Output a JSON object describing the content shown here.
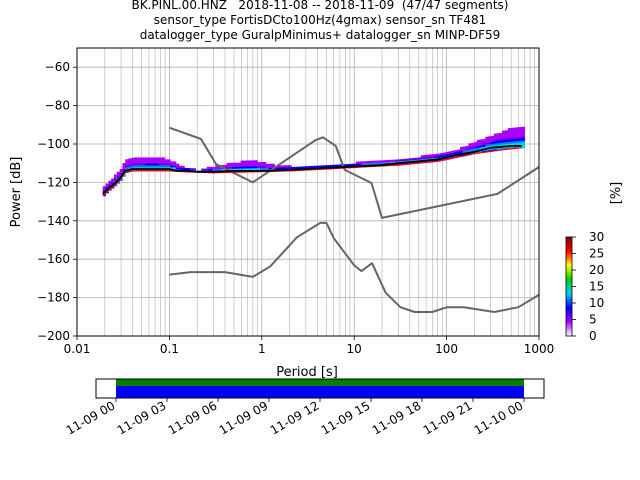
{
  "title_lines": [
    "BK.PINL.00.HNZ   2018-11-08 -- 2018-11-09  (47/47 segments)",
    "sensor_type FortisDCto100Hz(4gmax) sensor_sn TF481",
    "datalogger_type GuralpMinimus+ datalogger_sn MINP-DF59"
  ],
  "chart_data": {
    "type": "line",
    "title": "BK.PINL.00.HNZ   2018-11-08 -- 2018-11-09  (47/47 segments)",
    "xlabel": "Period [s]",
    "ylabel": "Power [dB]",
    "xscale": "log",
    "xlim": [
      0.01,
      1000
    ],
    "ylim": [
      -200,
      -50
    ],
    "x_ticks": [
      0.01,
      0.1,
      1,
      10,
      100,
      1000
    ],
    "x_tick_labels": [
      "0.01",
      "0.1",
      "1",
      "10",
      "100",
      "1000"
    ],
    "y_ticks": [
      -200,
      -180,
      -160,
      -140,
      -120,
      -100,
      -80,
      -60
    ],
    "y_tick_labels": [
      "−200",
      "−180",
      "−160",
      "−140",
      "−120",
      "−100",
      "−80",
      "−60"
    ],
    "grid": true,
    "series": [
      {
        "role": "noise_model_high",
        "color": "#666666",
        "x": [
          0.1,
          0.22,
          0.32,
          0.8,
          3.8,
          4.6,
          6.3,
          7.9,
          15.4,
          20,
          354.8,
          1000
        ],
        "y": [
          -91.5,
          -97.4,
          -110.5,
          -120,
          -98,
          -96.5,
          -101,
          -113.5,
          -120.3,
          -138.5,
          -126,
          -112
        ]
      },
      {
        "role": "noise_model_low",
        "color": "#666666",
        "x": [
          0.1,
          0.17,
          0.4,
          0.8,
          1.24,
          2.4,
          4.3,
          5,
          6,
          10,
          12,
          15.6,
          21.9,
          31.6,
          45,
          70,
          101,
          154,
          328,
          600,
          1000
        ],
        "y": [
          -168,
          -166.7,
          -166.7,
          -169.2,
          -163.7,
          -148.6,
          -141.1,
          -141.1,
          -149,
          -163.2,
          -166.2,
          -162.1,
          -177.5,
          -185,
          -187.5,
          -187.5,
          -185,
          -185,
          -187.5,
          -185,
          -178.5
        ]
      },
      {
        "role": "mode",
        "color": "#000000",
        "x": [
          0.019,
          0.022,
          0.025,
          0.029,
          0.033,
          0.04,
          0.05,
          0.06,
          0.08,
          0.1,
          0.12,
          0.15,
          0.2,
          0.3,
          0.5,
          0.8,
          1.2,
          2,
          3,
          5,
          8,
          12,
          20,
          30,
          50,
          80,
          120,
          200,
          300,
          500,
          650
        ],
        "y": [
          -126,
          -123,
          -121,
          -118,
          -114,
          -113,
          -113,
          -113,
          -113,
          -113,
          -114,
          -114,
          -114.5,
          -114.5,
          -114,
          -114,
          -114,
          -113.5,
          -113,
          -112.5,
          -112,
          -111.5,
          -111,
          -110,
          -109,
          -108,
          -106,
          -104,
          -102,
          -101,
          -101
        ]
      },
      {
        "role": "min",
        "color": "#ff0000",
        "x": [
          0.019,
          0.022,
          0.025,
          0.029,
          0.033,
          0.04,
          0.06,
          0.1,
          0.15,
          0.3,
          0.8,
          2,
          5,
          12,
          30,
          80,
          200,
          400,
          650
        ],
        "y": [
          -127,
          -124,
          -122,
          -119,
          -115,
          -114,
          -114,
          -114,
          -114.5,
          -115,
          -114.5,
          -114,
          -113,
          -112,
          -111,
          -109,
          -105,
          -103,
          -102
        ]
      },
      {
        "role": "max",
        "color": "#cc00cc",
        "x": [
          0.019,
          0.022,
          0.025,
          0.029,
          0.033,
          0.04,
          0.06,
          0.08,
          0.1,
          0.12,
          0.15,
          0.2,
          0.3,
          0.5,
          0.8,
          1.2,
          2,
          3,
          5,
          8,
          12,
          20,
          30,
          50,
          80,
          120,
          200,
          300,
          500,
          650
        ],
        "y": [
          -123,
          -120,
          -117,
          -113,
          -109,
          -108,
          -107,
          -107.5,
          -109,
          -111,
          -113,
          -114,
          -112,
          -110,
          -109,
          -111,
          -112,
          -112,
          -111.5,
          -111,
          -109.5,
          -108.5,
          -108,
          -107,
          -105.5,
          -104,
          -99,
          -96,
          -92,
          -92
        ]
      }
    ],
    "colorbar": {
      "label": "[%]",
      "range": [
        0,
        30
      ],
      "ticks": [
        0,
        5,
        10,
        15,
        20,
        25,
        30
      ],
      "tick_labels": [
        "0",
        "5",
        "10",
        "15",
        "20",
        "25",
        "30"
      ],
      "colors": [
        "#ffffff",
        "#aa00ff",
        "#0000ff",
        "#00cfff",
        "#00d000",
        "#ffff00",
        "#ff0000",
        "#800000"
      ]
    },
    "coverage": {
      "x_tick_labels": [
        "11-09 00",
        "11-09 03",
        "11-09 06",
        "11-09 09",
        "11-09 12",
        "11-09 15",
        "11-09 18",
        "11-09 21",
        "11-10 00"
      ],
      "x_tick_hours": [
        0,
        3,
        6,
        9,
        12,
        15,
        18,
        21,
        24
      ],
      "data_span_hours": [
        0,
        24
      ],
      "bars": [
        {
          "label": "green",
          "color": "#008000"
        },
        {
          "label": "blue",
          "color": "#0000ff"
        }
      ]
    }
  }
}
